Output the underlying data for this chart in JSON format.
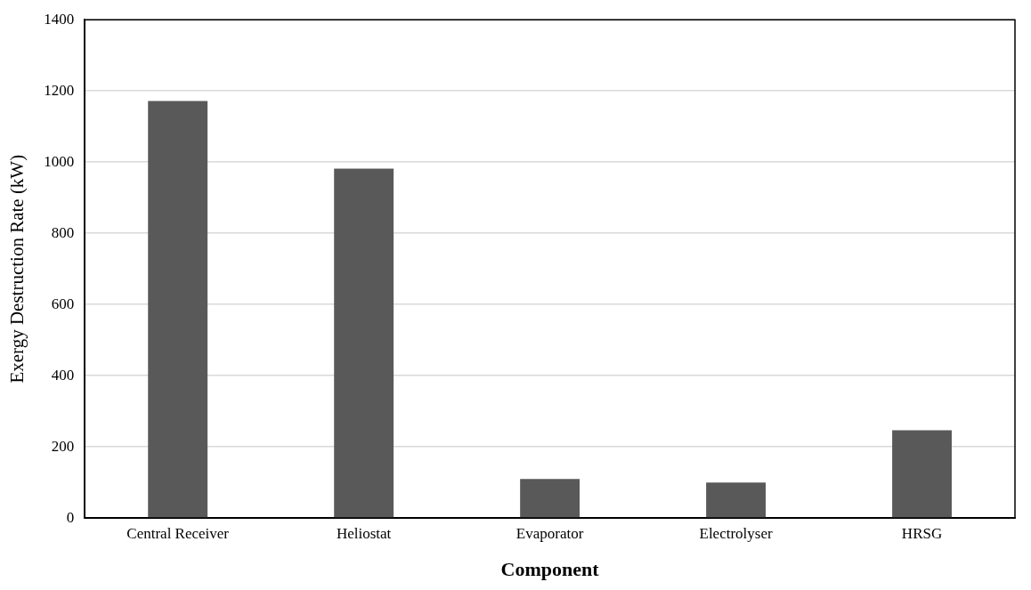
{
  "chart_data": {
    "type": "bar",
    "xlabel": "Component",
    "ylabel": "Exergy Destruction Rate (kW)",
    "categories": [
      "Central Receiver",
      "Heliostat",
      "Evaporator",
      "Electrolyser",
      "HRSG"
    ],
    "values": [
      1172,
      982,
      110,
      100,
      247
    ],
    "color": "#595959",
    "ylim": [
      0,
      1400
    ],
    "yticks": [
      0,
      200,
      400,
      600,
      800,
      1000,
      1200,
      1400
    ],
    "grid": "y",
    "legend": false
  }
}
